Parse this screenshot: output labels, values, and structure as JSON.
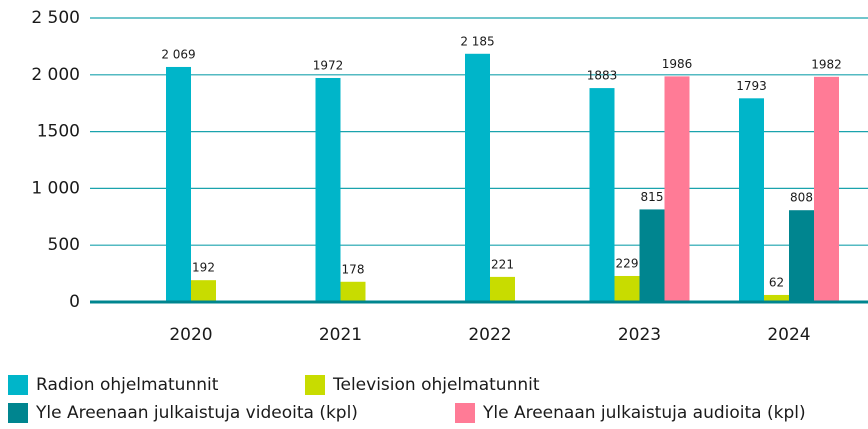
{
  "chart_data": {
    "type": "bar",
    "categories": [
      "2020",
      "2021",
      "2022",
      "2023",
      "2024"
    ],
    "series": [
      {
        "name": "Radion ohjelmatunnit",
        "color": "#00b5c9",
        "values": [
          2069,
          1972,
          2185,
          1883,
          1793
        ],
        "value_labels": [
          "2 069",
          "1972",
          "2 185",
          "1883",
          "1793"
        ]
      },
      {
        "name": "Television ohjelmatunnit",
        "color": "#c8dc00",
        "values": [
          192,
          178,
          221,
          229,
          62
        ]
      },
      {
        "name": "Yle Areenaan julkaistuja videoita (kpl)",
        "color": "#00858f",
        "values": [
          null,
          null,
          null,
          815,
          808
        ]
      },
      {
        "name": "Yle Areenaan julkaistuja audioita (kpl)",
        "color": "#ff7b96",
        "values": [
          null,
          null,
          null,
          1986,
          1982
        ]
      }
    ],
    "ylim": [
      0,
      2500
    ],
    "yticks": [
      0,
      500,
      {
        "value": 1000,
        "label": "1 000"
      },
      1500,
      {
        "value": 2000,
        "label": "2 000"
      },
      {
        "value": 2500,
        "label": "2 500"
      }
    ],
    "grid": true
  }
}
